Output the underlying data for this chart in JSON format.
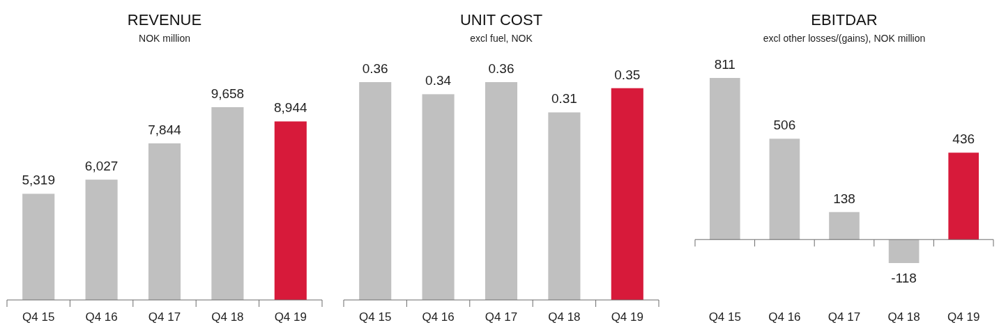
{
  "chart_data": [
    {
      "type": "bar",
      "title": "REVENUE",
      "subtitle": "NOK million",
      "categories": [
        "Q4 15",
        "Q4 16",
        "Q4 17",
        "Q4 18",
        "Q4 19"
      ],
      "values": [
        5319,
        6027,
        7844,
        9658,
        8944
      ],
      "colors": [
        "#c0c0c0",
        "#c0c0c0",
        "#c0c0c0",
        "#c0c0c0",
        "#d71a3a"
      ],
      "value_labels": [
        "5,319",
        "6,027",
        "7,844",
        "9,658",
        "8,944"
      ]
    },
    {
      "type": "bar",
      "title": "UNIT COST",
      "subtitle": "excl fuel, NOK",
      "categories": [
        "Q4 15",
        "Q4 16",
        "Q4 17",
        "Q4 18",
        "Q4 19"
      ],
      "values": [
        0.36,
        0.34,
        0.36,
        0.31,
        0.35
      ],
      "colors": [
        "#c0c0c0",
        "#c0c0c0",
        "#c0c0c0",
        "#c0c0c0",
        "#d71a3a"
      ],
      "data_labels": true
    },
    {
      "type": "bar",
      "title": "EBITDAR",
      "subtitle": "excl other losses/(gains), NOK million",
      "categories": [
        "Q4 15",
        "Q4 16",
        "Q4 17",
        "Q4 18",
        "Q4 19"
      ],
      "values": [
        811,
        506,
        138,
        -118,
        436
      ],
      "colors": [
        "#c0c0c0",
        "#c0c0c0",
        "#c0c0c0",
        "#c0c0c0",
        "#d71a3a"
      ],
      "data_labels": true
    }
  ]
}
